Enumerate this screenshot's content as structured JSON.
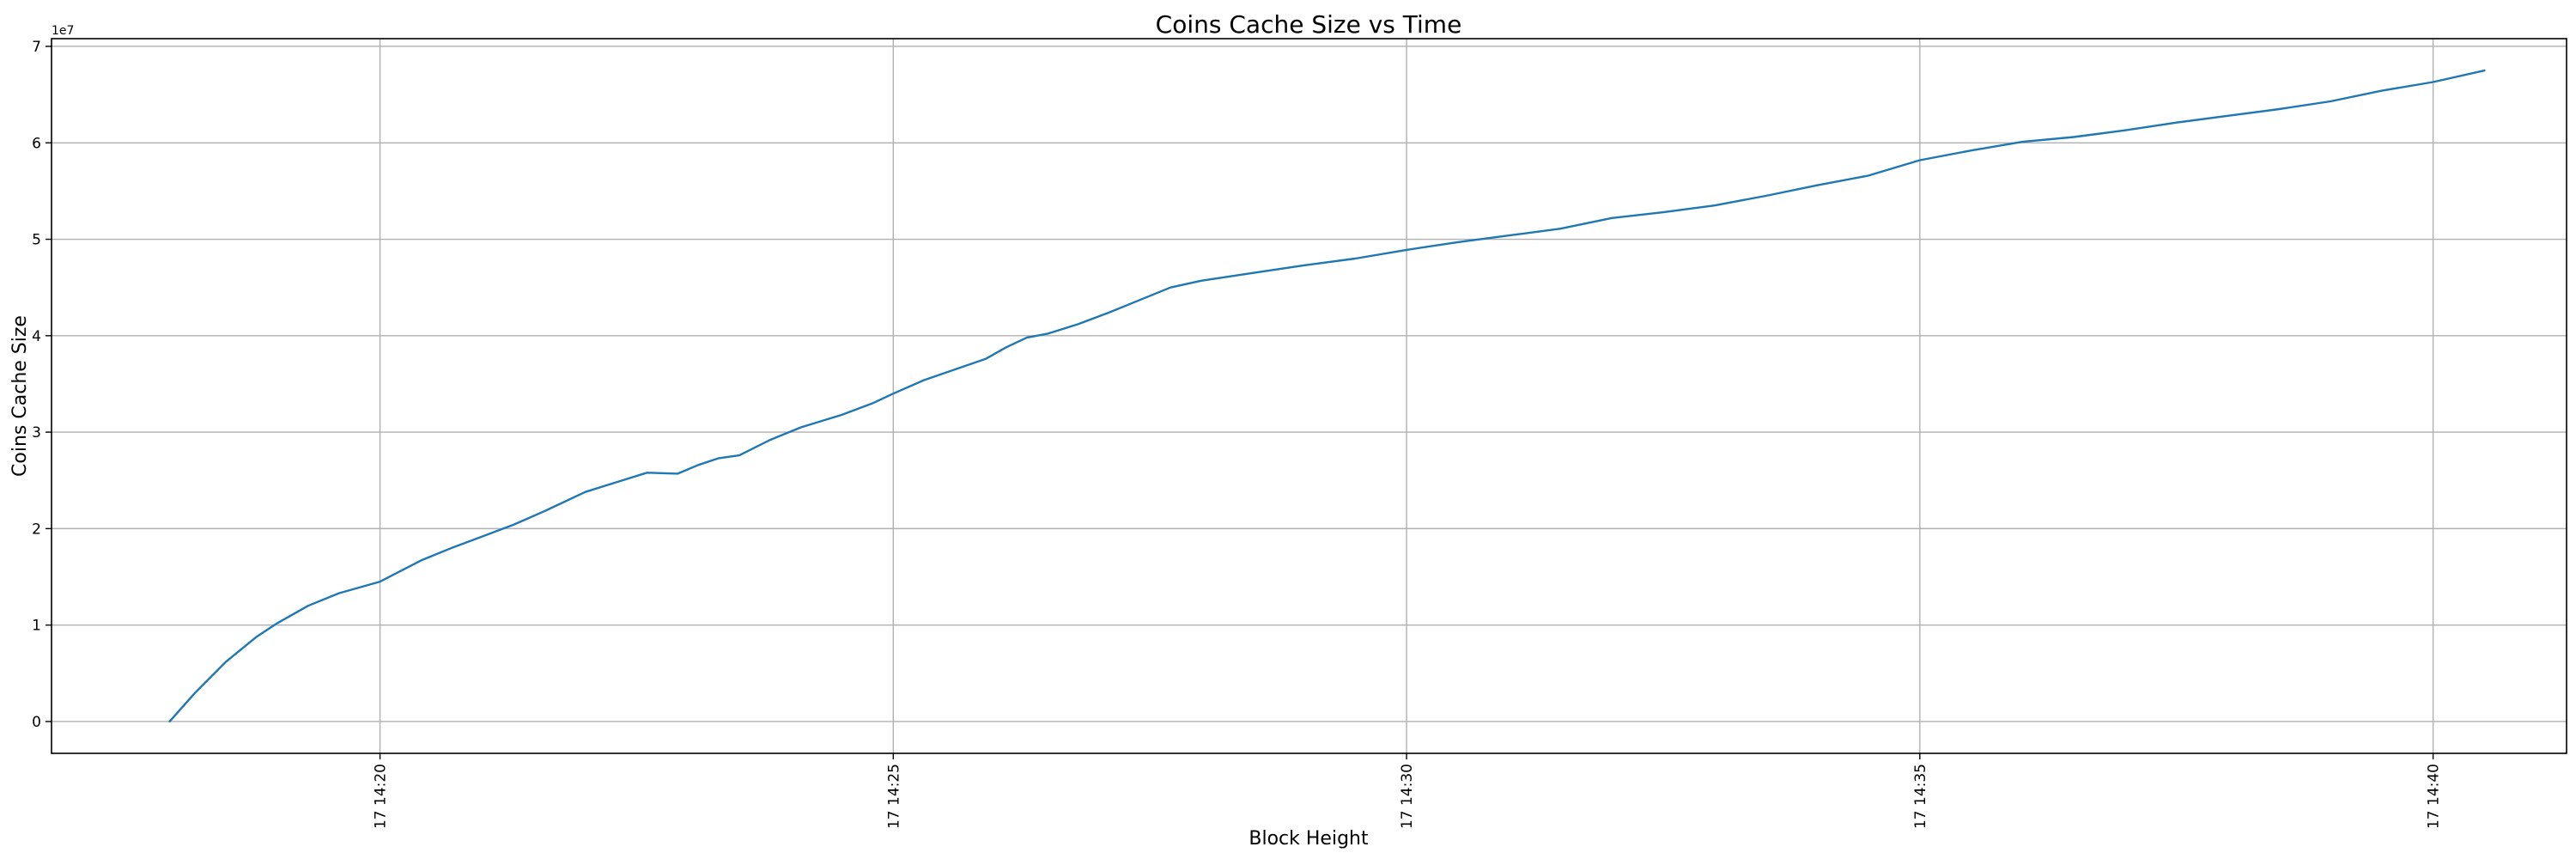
{
  "chart_data": {
    "type": "line",
    "title": "Coins Cache Size vs Time",
    "xlabel": "Block Height",
    "ylabel": "Coins Cache Size",
    "y_offset_label": "1e7",
    "grid": true,
    "line_color": "#1f77b4",
    "x_unit": "minutes past 14:00 on day 17",
    "xlim": [
      16.8,
      41.3
    ],
    "ylim": [
      -3300000,
      70800000
    ],
    "x_ticks": [
      {
        "value": 20,
        "label": "17 14:20"
      },
      {
        "value": 25,
        "label": "17 14:25"
      },
      {
        "value": 30,
        "label": "17 14:30"
      },
      {
        "value": 35,
        "label": "17 14:35"
      },
      {
        "value": 40,
        "label": "17 14:40"
      }
    ],
    "y_ticks": [
      {
        "value": 0,
        "label": "0"
      },
      {
        "value": 10000000,
        "label": "1"
      },
      {
        "value": 20000000,
        "label": "2"
      },
      {
        "value": 30000000,
        "label": "3"
      },
      {
        "value": 40000000,
        "label": "4"
      },
      {
        "value": 50000000,
        "label": "5"
      },
      {
        "value": 60000000,
        "label": "6"
      },
      {
        "value": 70000000,
        "label": "7"
      }
    ],
    "series": [
      {
        "x": [
          17.95,
          18.2,
          18.5,
          18.8,
          19.0,
          19.3,
          19.6,
          20.0,
          20.4,
          20.7,
          21.0,
          21.3,
          21.6,
          22.0,
          22.3,
          22.6,
          22.9,
          23.1,
          23.3,
          23.5,
          23.8,
          24.1,
          24.5,
          24.8,
          25.0,
          25.3,
          25.6,
          25.9,
          26.1,
          26.3,
          26.5,
          26.8,
          27.1,
          27.4,
          27.7,
          28.0,
          28.5,
          29.0,
          29.5,
          30.0,
          30.5,
          31.0,
          31.5,
          32.0,
          32.5,
          33.0,
          33.5,
          34.0,
          34.5,
          35.0,
          35.5,
          36.0,
          36.5,
          37.0,
          37.5,
          38.0,
          38.5,
          39.0,
          39.5,
          40.0,
          40.5
        ],
        "y": [
          0,
          3000000,
          6200000,
          8800000,
          10200000,
          12000000,
          13300000,
          14500000,
          16700000,
          18000000,
          19200000,
          20400000,
          21800000,
          23800000,
          24800000,
          25800000,
          25700000,
          26600000,
          27300000,
          27600000,
          29200000,
          30500000,
          31800000,
          33000000,
          34000000,
          35400000,
          36500000,
          37600000,
          38800000,
          39800000,
          40200000,
          41200000,
          42400000,
          43700000,
          45000000,
          45700000,
          46500000,
          47300000,
          48000000,
          48900000,
          49700000,
          50400000,
          51100000,
          52200000,
          52800000,
          53500000,
          54500000,
          55600000,
          56600000,
          58200000,
          59200000,
          60100000,
          60600000,
          61300000,
          62100000,
          62800000,
          63500000,
          64300000,
          65400000,
          66300000,
          67500000
        ]
      }
    ]
  }
}
